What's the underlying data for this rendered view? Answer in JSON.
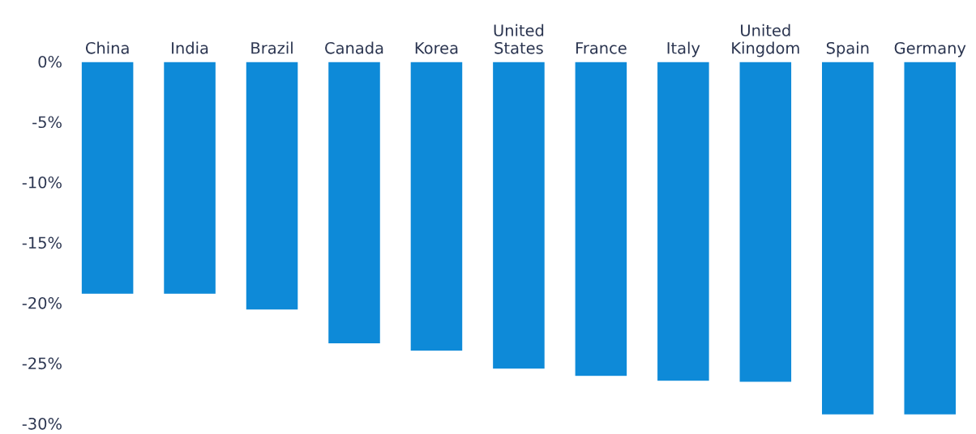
{
  "chart_data": {
    "type": "bar",
    "categories": [
      "China",
      "India",
      "Brazil",
      "Canada",
      "Korea",
      "United\nStates",
      "France",
      "Italy",
      "United\nKingdom",
      "Spain",
      "Germany"
    ],
    "values": [
      -19.3,
      -19.3,
      -20.6,
      -23.4,
      -24.0,
      -25.5,
      -26.1,
      -26.5,
      -26.6,
      -29.3,
      -29.3
    ],
    "color": "#0e8ad8",
    "ylim": [
      -30,
      0
    ],
    "yticks": [
      {
        "value": 0,
        "label": "0%"
      },
      {
        "value": -5,
        "label": "-5%"
      },
      {
        "value": -10,
        "label": "-10%"
      },
      {
        "value": -15,
        "label": "-15%"
      },
      {
        "value": -20,
        "label": "-20%"
      },
      {
        "value": -25,
        "label": "-25%"
      },
      {
        "value": -30,
        "label": "-30%"
      }
    ],
    "grid": false
  }
}
